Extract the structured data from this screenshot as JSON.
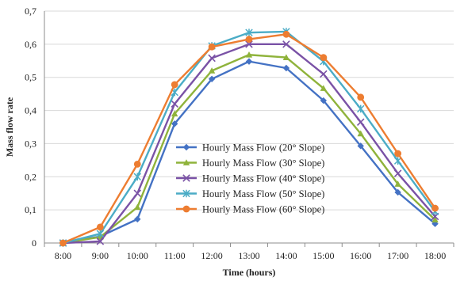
{
  "chart_data": {
    "type": "line",
    "xlabel": "Time (hours)",
    "ylabel": "Mass flow rate",
    "categories": [
      "8:00",
      "9:00",
      "10:00",
      "11:00",
      "12:00",
      "13:00",
      "14:00",
      "15:00",
      "16:00",
      "17:00",
      "18:00"
    ],
    "ylim": [
      0,
      0.7
    ],
    "yticks": [
      "0",
      "0,1",
      "0,2",
      "0,3",
      "0,4",
      "0,5",
      "0,6",
      "0,7"
    ],
    "grid": true,
    "legend": "center-left",
    "series": [
      {
        "name": "Hourly Mass Flow (20° Slope)",
        "color": "#4472c4",
        "marker": "diamond",
        "values": [
          0,
          0.02,
          0.072,
          0.36,
          0.495,
          0.548,
          0.528,
          0.43,
          0.293,
          0.153,
          0.058
        ]
      },
      {
        "name": "Hourly Mass Flow (30° Slope)",
        "color": "#8fb33b",
        "marker": "triangle",
        "values": [
          0,
          0.018,
          0.108,
          0.39,
          0.52,
          0.568,
          0.56,
          0.467,
          0.33,
          0.178,
          0.07
        ]
      },
      {
        "name": "Hourly Mass Flow (40° Slope)",
        "color": "#7a52a6",
        "marker": "x",
        "values": [
          0,
          0.005,
          0.15,
          0.42,
          0.558,
          0.6,
          0.6,
          0.51,
          0.365,
          0.21,
          0.08
        ]
      },
      {
        "name": "Hourly Mass Flow (50° Slope)",
        "color": "#4bacc6",
        "marker": "star",
        "values": [
          0,
          0.028,
          0.2,
          0.455,
          0.595,
          0.635,
          0.638,
          0.548,
          0.405,
          0.248,
          0.095
        ]
      },
      {
        "name": "Hourly Mass Flow (60° Slope)",
        "color": "#ed7d31",
        "marker": "circle",
        "values": [
          0,
          0.048,
          0.238,
          0.478,
          0.592,
          0.615,
          0.63,
          0.56,
          0.44,
          0.27,
          0.105
        ]
      }
    ]
  }
}
